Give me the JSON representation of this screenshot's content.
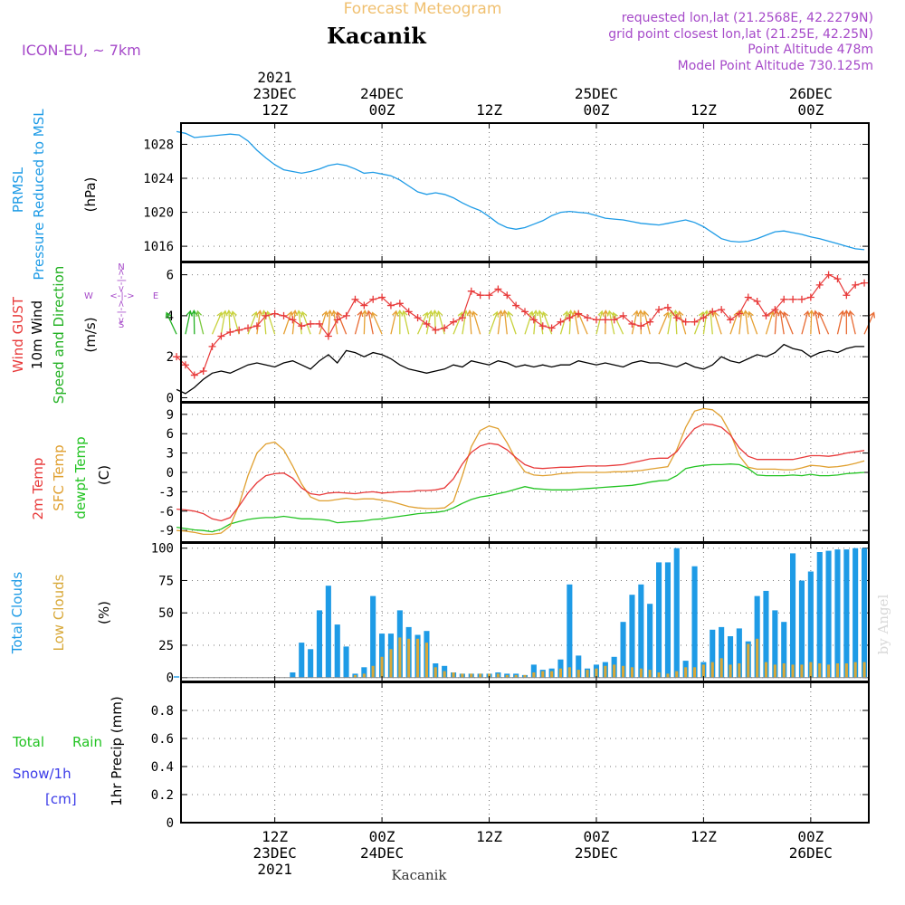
{
  "header": {
    "title": "Forecast Meteogram",
    "location": "Kacanik",
    "model": "ICON-EU, ~ 7km",
    "requested": "requested lon,lat (21.2568E, 42.2279N)",
    "grid": "grid point closest lon,lat (21.25E, 42.25N)",
    "point_alt": "Point Altitude 478m",
    "model_alt": "Model Point Altitude 730.125m",
    "footer_name": "Kacanik",
    "credit": "by Angel"
  },
  "colors": {
    "pressure": "#1e9be6",
    "gust": "#e83a3a",
    "wind": "#000000",
    "dir": "#22b122",
    "t2m": "#e83a3a",
    "sfc": "#e0a030",
    "dewpt": "#22c322",
    "total_cloud": "#1e9be6",
    "low_cloud": "#d8a838",
    "rain": "#22c322",
    "snow": "#3a3ae8",
    "meta": "#a64ac9",
    "title": "#f0c070"
  },
  "time_axis": {
    "top_labels": [
      {
        "h": 12,
        "lines": [
          "2021",
          "23DEC",
          "12Z"
        ]
      },
      {
        "h": 24,
        "lines": [
          "24DEC",
          "00Z"
        ]
      },
      {
        "h": 36,
        "lines": [
          "12Z"
        ]
      },
      {
        "h": 48,
        "lines": [
          "25DEC",
          "00Z"
        ]
      },
      {
        "h": 60,
        "lines": [
          "12Z"
        ]
      },
      {
        "h": 72,
        "lines": [
          "26DEC",
          "00Z"
        ]
      }
    ],
    "bottom_labels": [
      {
        "h": 12,
        "lines": [
          "12Z",
          "23DEC",
          "2021"
        ]
      },
      {
        "h": 24,
        "lines": [
          "00Z",
          "24DEC"
        ]
      },
      {
        "h": 36,
        "lines": [
          "12Z"
        ]
      },
      {
        "h": 48,
        "lines": [
          "00Z",
          "25DEC"
        ]
      },
      {
        "h": 60,
        "lines": [
          "12Z"
        ]
      },
      {
        "h": 72,
        "lines": [
          "00Z",
          "26DEC"
        ]
      }
    ]
  },
  "panels": {
    "pressure": {
      "label1": "PRMSL",
      "label2": "Pressure Reduced to MSL",
      "unit": "(hPa)",
      "ticks": [
        "1016",
        "1020",
        "1024",
        "1028"
      ]
    },
    "wind": {
      "gust": "Wind GUST",
      "wind": "10m Wind",
      "dir": "Speed and Direction",
      "unit": "(m/s)",
      "ticks": [
        "0",
        "2",
        "4",
        "6"
      ],
      "compass_n": "N",
      "compass_s": "S",
      "compass_w": "W",
      "compass_e": "E",
      "compass_mid": "<-|->"
    },
    "temp": {
      "t2m": "2m Temp",
      "sfc": "SFC Temp",
      "dewpt": "dewpt Temp",
      "unit": "(C)",
      "ticks": [
        "-9",
        "-6",
        "-3",
        "0",
        "3",
        "6",
        "9"
      ]
    },
    "clouds": {
      "total": "Total Clouds",
      "low": "Low Clouds",
      "unit": "(%)",
      "ticks": [
        "0",
        "25",
        "50",
        "75",
        "100"
      ]
    },
    "precip": {
      "total": "Total",
      "rain": "Rain",
      "snow": "Snow/1h",
      "cm": "[cm]",
      "ylabel": "1hr Precip (mm)",
      "ticks": [
        "0",
        "0.2",
        "0.4",
        "0.6",
        "0.8"
      ]
    }
  },
  "chart_data": {
    "type": "line",
    "x_unit": "hours since 2021-12-23 00Z",
    "x_range": [
      1.5,
      78.5
    ],
    "pressure": {
      "ylim": [
        1014.2,
        1030.5
      ],
      "x": [
        1,
        2,
        3,
        4,
        5,
        6,
        7,
        8,
        9,
        10,
        11,
        12,
        13,
        14,
        15,
        16,
        17,
        18,
        19,
        20,
        21,
        22,
        23,
        24,
        25,
        26,
        27,
        28,
        29,
        30,
        31,
        32,
        33,
        34,
        35,
        36,
        37,
        38,
        39,
        40,
        41,
        42,
        43,
        44,
        45,
        46,
        47,
        48,
        49,
        50,
        51,
        52,
        53,
        54,
        55,
        56,
        57,
        58,
        59,
        60,
        61,
        62,
        63,
        64,
        65,
        66,
        67,
        68,
        69,
        70,
        71,
        72,
        73,
        74,
        75,
        76,
        77,
        78
      ],
      "values": [
        1029.5,
        1029.3,
        1028.8,
        1028.9,
        1029.0,
        1029.1,
        1029.2,
        1029.1,
        1028.4,
        1027.3,
        1026.4,
        1025.6,
        1025.0,
        1024.8,
        1024.6,
        1024.8,
        1025.1,
        1025.5,
        1025.7,
        1025.5,
        1025.1,
        1024.6,
        1024.7,
        1024.5,
        1024.3,
        1023.8,
        1023.1,
        1022.4,
        1022.1,
        1022.3,
        1022.1,
        1021.7,
        1021.1,
        1020.6,
        1020.2,
        1019.5,
        1018.7,
        1018.2,
        1018.0,
        1018.2,
        1018.6,
        1019.0,
        1019.6,
        1020.0,
        1020.1,
        1020.0,
        1019.9,
        1019.6,
        1019.3,
        1019.2,
        1019.1,
        1018.9,
        1018.7,
        1018.6,
        1018.5,
        1018.7,
        1018.9,
        1019.1,
        1018.8,
        1018.3,
        1017.6,
        1016.9,
        1016.6,
        1016.5,
        1016.6,
        1016.9,
        1017.3,
        1017.7,
        1017.8,
        1017.6,
        1017.4,
        1017.1,
        1016.9,
        1016.6,
        1016.3,
        1016.0,
        1015.7,
        1015.6
      ]
    },
    "wind": {
      "ylim": [
        -0.2,
        6.6
      ],
      "x": [
        1,
        2,
        3,
        4,
        5,
        6,
        7,
        8,
        9,
        10,
        11,
        12,
        13,
        14,
        15,
        16,
        17,
        18,
        19,
        20,
        21,
        22,
        23,
        24,
        25,
        26,
        27,
        28,
        29,
        30,
        31,
        32,
        33,
        34,
        35,
        36,
        37,
        38,
        39,
        40,
        41,
        42,
        43,
        44,
        45,
        46,
        47,
        48,
        49,
        50,
        51,
        52,
        53,
        54,
        55,
        56,
        57,
        58,
        59,
        60,
        61,
        62,
        63,
        64,
        65,
        66,
        67,
        68,
        69,
        70,
        71,
        72,
        73,
        74,
        75,
        76,
        77,
        78
      ],
      "speed": [
        0.4,
        0.2,
        0.5,
        0.9,
        1.2,
        1.3,
        1.2,
        1.4,
        1.6,
        1.7,
        1.6,
        1.5,
        1.7,
        1.8,
        1.6,
        1.4,
        1.8,
        2.1,
        1.7,
        2.3,
        2.2,
        2.0,
        2.2,
        2.1,
        1.9,
        1.6,
        1.4,
        1.3,
        1.2,
        1.3,
        1.4,
        1.6,
        1.5,
        1.8,
        1.7,
        1.6,
        1.8,
        1.7,
        1.5,
        1.6,
        1.5,
        1.6,
        1.5,
        1.6,
        1.6,
        1.8,
        1.7,
        1.6,
        1.7,
        1.6,
        1.5,
        1.7,
        1.8,
        1.7,
        1.7,
        1.6,
        1.5,
        1.7,
        1.5,
        1.4,
        1.6,
        2.0,
        1.8,
        1.7,
        1.9,
        2.1,
        2.0,
        2.2,
        2.6,
        2.4,
        2.3,
        2.0,
        2.2,
        2.3,
        2.2,
        2.4,
        2.5,
        2.5
      ],
      "gust": [
        2.0,
        1.6,
        1.1,
        1.3,
        2.5,
        3.0,
        3.2,
        3.3,
        3.4,
        3.5,
        4.0,
        4.1,
        4.0,
        3.8,
        3.5,
        3.6,
        3.6,
        3.0,
        3.8,
        4.0,
        4.8,
        4.5,
        4.8,
        4.9,
        4.5,
        4.6,
        4.2,
        3.9,
        3.6,
        3.3,
        3.4,
        3.7,
        3.9,
        5.2,
        5.0,
        5.0,
        5.3,
        5.0,
        4.5,
        4.2,
        3.8,
        3.5,
        3.4,
        3.7,
        3.9,
        4.1,
        3.9,
        3.8,
        3.8,
        3.8,
        4.0,
        3.6,
        3.5,
        3.7,
        4.3,
        4.4,
        3.9,
        3.7,
        3.7,
        3.9,
        4.2,
        4.3,
        3.8,
        4.1,
        4.9,
        4.7,
        4.0,
        4.3,
        4.8,
        4.8,
        4.8,
        4.9,
        5.5,
        6.0,
        5.8,
        5.0,
        5.5,
        5.6
      ]
    },
    "temperature": {
      "ylim": [
        -10.8,
        10.8
      ],
      "x": [
        1,
        2,
        3,
        4,
        5,
        6,
        7,
        8,
        9,
        10,
        11,
        12,
        13,
        14,
        15,
        16,
        17,
        18,
        19,
        20,
        21,
        22,
        23,
        24,
        25,
        26,
        27,
        28,
        29,
        30,
        31,
        32,
        33,
        34,
        35,
        36,
        37,
        38,
        39,
        40,
        41,
        42,
        43,
        44,
        45,
        46,
        47,
        48,
        49,
        50,
        51,
        52,
        53,
        54,
        55,
        56,
        57,
        58,
        59,
        60,
        61,
        62,
        63,
        64,
        65,
        66,
        67,
        68,
        69,
        70,
        71,
        72,
        73,
        74,
        75,
        76,
        77,
        78
      ],
      "t2m": [
        -5.7,
        -5.8,
        -6.0,
        -6.4,
        -7.2,
        -7.5,
        -7.0,
        -5.2,
        -3.2,
        -1.6,
        -0.5,
        -0.2,
        -0.1,
        -0.9,
        -2.4,
        -3.3,
        -3.5,
        -3.2,
        -3.1,
        -3.2,
        -3.3,
        -3.1,
        -3.0,
        -3.2,
        -3.1,
        -3.0,
        -3.0,
        -2.8,
        -2.8,
        -2.7,
        -2.4,
        -1.0,
        1.3,
        3.1,
        4.1,
        4.5,
        4.3,
        3.5,
        2.3,
        1.2,
        0.7,
        0.6,
        0.7,
        0.8,
        0.8,
        0.9,
        1.0,
        1.0,
        1.0,
        1.1,
        1.2,
        1.5,
        1.8,
        2.1,
        2.2,
        2.2,
        3.2,
        5.2,
        6.8,
        7.5,
        7.4,
        7.0,
        5.8,
        3.8,
        2.5,
        2.0,
        2.0,
        2.0,
        2.0,
        2.0,
        2.3,
        2.6,
        2.6,
        2.5,
        2.7,
        3.0,
        3.2,
        3.4
      ],
      "sfc": [
        -9.0,
        -9.1,
        -9.3,
        -9.6,
        -9.6,
        -9.4,
        -8.3,
        -5.0,
        -0.5,
        3.0,
        4.4,
        4.7,
        3.5,
        1.0,
        -1.8,
        -3.8,
        -4.4,
        -4.4,
        -4.2,
        -4.0,
        -4.2,
        -4.1,
        -4.1,
        -4.3,
        -4.5,
        -4.9,
        -5.3,
        -5.5,
        -5.6,
        -5.6,
        -5.5,
        -4.5,
        -0.5,
        4.0,
        6.5,
        7.2,
        6.8,
        4.6,
        2.0,
        0.1,
        -0.4,
        -0.5,
        -0.4,
        -0.2,
        -0.1,
        0.0,
        0.0,
        0.0,
        0.0,
        0.1,
        0.1,
        0.2,
        0.3,
        0.5,
        0.7,
        0.9,
        3.5,
        7.0,
        9.5,
        9.9,
        9.7,
        8.6,
        6.1,
        2.6,
        0.8,
        0.5,
        0.5,
        0.5,
        0.4,
        0.4,
        0.7,
        1.1,
        1.0,
        0.8,
        0.9,
        1.1,
        1.4,
        1.8
      ],
      "dewpt": [
        -8.5,
        -8.7,
        -8.9,
        -9.0,
        -9.2,
        -8.8,
        -8.0,
        -7.6,
        -7.3,
        -7.1,
        -7.0,
        -7.0,
        -6.8,
        -7.0,
        -7.2,
        -7.2,
        -7.3,
        -7.4,
        -7.8,
        -7.7,
        -7.6,
        -7.5,
        -7.3,
        -7.2,
        -7.0,
        -6.8,
        -6.6,
        -6.4,
        -6.3,
        -6.2,
        -6.0,
        -5.5,
        -4.8,
        -4.2,
        -3.8,
        -3.6,
        -3.3,
        -3.0,
        -2.6,
        -2.2,
        -2.5,
        -2.6,
        -2.7,
        -2.7,
        -2.7,
        -2.6,
        -2.5,
        -2.4,
        -2.3,
        -2.2,
        -2.1,
        -2.0,
        -1.8,
        -1.5,
        -1.3,
        -1.2,
        -0.5,
        0.6,
        0.9,
        1.1,
        1.2,
        1.2,
        1.3,
        1.2,
        0.6,
        -0.4,
        -0.5,
        -0.5,
        -0.5,
        -0.4,
        -0.5,
        -0.3,
        -0.5,
        -0.5,
        -0.4,
        -0.2,
        -0.1,
        0.0
      ]
    },
    "clouds": {
      "type": "bar",
      "ylim": [
        -3,
        104
      ],
      "x": [
        1,
        2,
        3,
        4,
        5,
        6,
        7,
        8,
        9,
        10,
        11,
        12,
        13,
        14,
        15,
        16,
        17,
        18,
        19,
        20,
        21,
        22,
        23,
        24,
        25,
        26,
        27,
        28,
        29,
        30,
        31,
        32,
        33,
        34,
        35,
        36,
        37,
        38,
        39,
        40,
        41,
        42,
        43,
        44,
        45,
        46,
        47,
        48,
        49,
        50,
        51,
        52,
        53,
        54,
        55,
        56,
        57,
        58,
        59,
        60,
        61,
        62,
        63,
        64,
        65,
        66,
        67,
        68,
        69,
        70,
        71,
        72,
        73,
        74,
        75,
        76,
        77,
        78
      ],
      "total": [
        1,
        0,
        0,
        0,
        0,
        0,
        0,
        0,
        0,
        0,
        0,
        0,
        0,
        4,
        27,
        22,
        52,
        71,
        41,
        24,
        3,
        8,
        63,
        34,
        34,
        52,
        39,
        33,
        36,
        11,
        9,
        4,
        3,
        3,
        3,
        3,
        4,
        3,
        3,
        2,
        10,
        6,
        7,
        14,
        72,
        17,
        7,
        10,
        12,
        16,
        43,
        64,
        72,
        57,
        89,
        89,
        100,
        13,
        86,
        12,
        37,
        39,
        32,
        38,
        28,
        63,
        67,
        52,
        43,
        96,
        75,
        82,
        97,
        98,
        99,
        99,
        100,
        100
      ],
      "low": [
        0,
        0,
        0,
        0,
        0,
        0,
        0,
        0,
        0,
        0,
        0,
        0,
        0,
        0,
        0,
        0,
        0,
        0,
        0,
        0,
        2,
        3,
        9,
        16,
        22,
        31,
        30,
        30,
        27,
        8,
        5,
        4,
        3,
        3,
        3,
        3,
        3,
        2,
        2,
        2,
        4,
        5,
        5,
        7,
        8,
        6,
        6,
        7,
        9,
        10,
        9,
        8,
        7,
        6,
        4,
        3,
        5,
        8,
        8,
        10,
        12,
        15,
        10,
        11,
        26,
        30,
        12,
        10,
        11,
        10,
        10,
        12,
        11,
        10,
        11,
        11,
        12,
        12
      ]
    },
    "precip": {
      "type": "bar",
      "ylim": [
        0,
        1.0
      ],
      "total_rain": [],
      "snow": []
    }
  }
}
